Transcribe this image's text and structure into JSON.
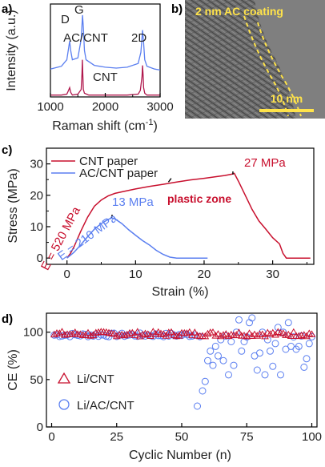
{
  "panel_labels": {
    "a": "a)",
    "b": "b)",
    "c": "c)",
    "d": "d)"
  },
  "colors": {
    "blue": "#5b7ff0",
    "red": "#c8102e",
    "crimson": "#b0184d",
    "yellow": "#ffe34a",
    "axis": "#000000"
  },
  "chart_data": [
    {
      "id": "raman",
      "type": "line",
      "xlabel_main": "Raman shift (cm",
      "xlabel_sup": "-1",
      "xlabel_end": ")",
      "ylabel": "Intensity (a.u.)",
      "xlim": [
        1000,
        3000
      ],
      "xticks": [
        "1000",
        "2000",
        "3000"
      ],
      "x_minor": [
        1500,
        2500
      ],
      "annotations": [
        "D",
        "G",
        "2D"
      ],
      "series": [
        {
          "name": "AC/CNT",
          "color": "#5b7ff0",
          "x": [
            1000,
            1200,
            1300,
            1330,
            1350,
            1370,
            1400,
            1500,
            1560,
            1585,
            1600,
            1620,
            1650,
            1800,
            2000,
            2200,
            2400,
            2600,
            2650,
            2680,
            2700,
            2720,
            2760,
            2900,
            3000
          ],
          "y": [
            0.3,
            0.33,
            0.4,
            0.52,
            0.6,
            0.5,
            0.4,
            0.42,
            0.62,
            0.88,
            0.75,
            0.5,
            0.4,
            0.34,
            0.32,
            0.31,
            0.32,
            0.36,
            0.48,
            0.72,
            0.58,
            0.4,
            0.33,
            0.3,
            0.29
          ]
        },
        {
          "name": "CNT",
          "color": "#b0184d",
          "x": [
            1000,
            1200,
            1300,
            1330,
            1350,
            1370,
            1400,
            1500,
            1560,
            1575,
            1582,
            1590,
            1600,
            1620,
            1700,
            1900,
            2200,
            2400,
            2600,
            2640,
            2670,
            2680,
            2690,
            2700,
            2720,
            2760,
            2900,
            3000
          ],
          "y": [
            0.02,
            0.02,
            0.03,
            0.07,
            0.1,
            0.05,
            0.02,
            0.03,
            0.08,
            0.25,
            0.4,
            0.26,
            0.08,
            0.04,
            0.02,
            0.02,
            0.02,
            0.02,
            0.03,
            0.07,
            0.22,
            0.34,
            0.23,
            0.1,
            0.04,
            0.02,
            0.02,
            0.02
          ]
        }
      ]
    },
    {
      "id": "tem",
      "type": "image",
      "caption": "2 nm AC coating",
      "scale": "10 nm"
    },
    {
      "id": "stress",
      "type": "line",
      "xlabel": "Strain (%)",
      "ylabel": "Stress (MPa)",
      "xlim": [
        -3,
        36
      ],
      "ylim": [
        -2,
        35
      ],
      "xticks": [
        0,
        10,
        20,
        30
      ],
      "yticks": [
        0,
        10,
        20,
        30
      ],
      "annotations": [
        "27 MPa",
        "13 MPa",
        "plastic zone",
        "E = 520 MPa",
        "E = 210 MPa"
      ],
      "legend_position": "top-left",
      "series": [
        {
          "name": "CNT paper",
          "color": "#c8102e",
          "x": [
            0,
            0.5,
            1,
            2,
            3,
            4,
            5,
            6,
            7,
            8,
            10,
            12,
            14,
            16,
            18,
            20,
            22,
            23,
            24,
            24.4,
            25,
            26,
            27,
            28,
            29,
            30,
            31,
            31.5,
            32,
            33,
            34,
            35.5
          ],
          "y": [
            0,
            1.5,
            3.5,
            8.5,
            13,
            16.5,
            18.5,
            19.8,
            20.6,
            21.1,
            22,
            22.8,
            23.5,
            24.2,
            24.9,
            25.4,
            26,
            26.3,
            26.7,
            27,
            24.5,
            20,
            15.5,
            11.8,
            9.2,
            6.5,
            4.5,
            1.5,
            0,
            0,
            0,
            0
          ]
        },
        {
          "name": "AC/CNT paper",
          "color": "#5b7ff0",
          "x": [
            0,
            1,
            2,
            3,
            4,
            5,
            6,
            6.5,
            7,
            8,
            9,
            10,
            11,
            12,
            13,
            14,
            15,
            16,
            17,
            18,
            20.5
          ],
          "y": [
            0,
            1.8,
            4.2,
            6.8,
            9.2,
            11,
            12.3,
            12.8,
            12.5,
            11,
            9,
            7.3,
            5.6,
            4.2,
            2.5,
            1.2,
            0.3,
            0,
            0,
            0,
            0
          ]
        }
      ]
    },
    {
      "id": "ce",
      "type": "scatter",
      "xlabel": "Cyclic Number (n)",
      "ylabel": "CE (%)",
      "xlim": [
        -2,
        102
      ],
      "ylim": [
        0,
        120
      ],
      "xticks": [
        0,
        25,
        50,
        75,
        100
      ],
      "yticks": [
        0,
        50,
        100
      ],
      "legend_position": "bottom-left",
      "series": [
        {
          "name": "Li/CNT",
          "marker": "triangle",
          "color": "#c8102e",
          "style": "dense",
          "n": 100,
          "base": 98,
          "jitter": 2.5
        },
        {
          "name": "Li/AC/CNT",
          "marker": "circle",
          "color": "#5b7ff0",
          "style": "dense",
          "n": 100,
          "base": 97,
          "scatter_x": [
            56,
            58,
            59,
            60,
            61,
            62,
            63,
            64,
            65,
            66,
            67,
            68,
            69,
            70,
            71,
            72,
            73,
            74,
            75,
            76,
            77,
            78,
            79,
            80,
            81,
            82,
            83,
            84,
            85,
            86,
            87,
            88,
            89,
            90,
            91,
            92,
            93,
            94,
            95,
            96,
            97,
            98,
            99
          ],
          "scatter_y": [
            22,
            38,
            48,
            70,
            80,
            65,
            85,
            75,
            92,
            70,
            96,
            55,
            90,
            65,
            100,
            113,
            80,
            90,
            95,
            110,
            115,
            75,
            60,
            78,
            100,
            55,
            92,
            80,
            64,
            88,
            105,
            55,
            100,
            82,
            110,
            85,
            95,
            82,
            85,
            96,
            63,
            72,
            88
          ]
        }
      ]
    }
  ]
}
